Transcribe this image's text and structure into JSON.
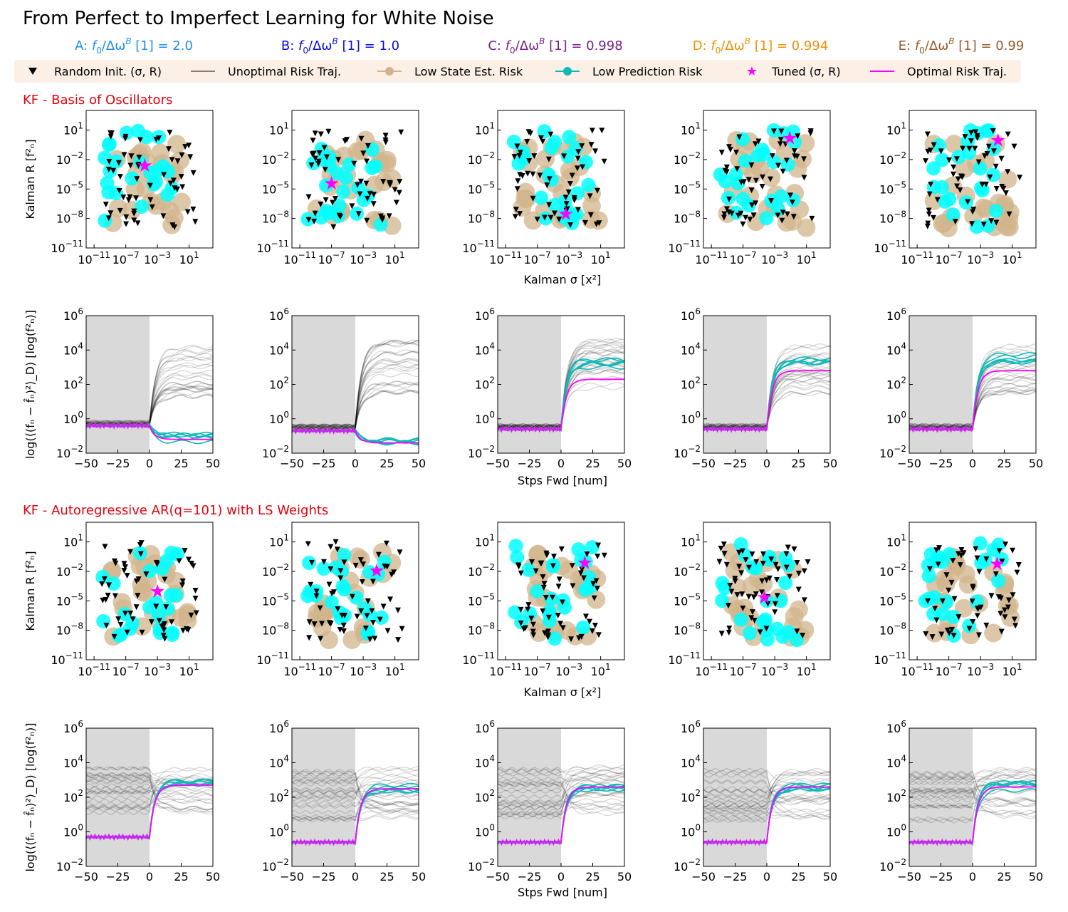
{
  "title": "From Perfect to Imperfect Learning for White Noise",
  "columns": [
    {
      "letter": "A",
      "value": "2.0",
      "color": "#1f8ff0"
    },
    {
      "letter": "B",
      "value": "1.0",
      "color": "#0a10e0"
    },
    {
      "letter": "C",
      "value": "0.998",
      "color": "#7a1e8a"
    },
    {
      "letter": "D",
      "value": "0.994",
      "color": "#f0900a"
    },
    {
      "letter": "E",
      "value": "0.99",
      "color": "#9a5a2a"
    }
  ],
  "column_label_mid": "/Δω",
  "column_label_tail": " [1] = ",
  "legend": {
    "items": [
      {
        "label": "Random Init. (σ, R)",
        "kind": "triangle",
        "color": "#000000"
      },
      {
        "label": "Unoptimal Risk Traj.",
        "kind": "line",
        "color": "#808080"
      },
      {
        "label": "Low State Est. Risk",
        "kind": "line-dot",
        "color": "#d2b48c"
      },
      {
        "label": "Low Prediction Risk",
        "kind": "line-dot",
        "color": "#10b8b8"
      },
      {
        "label": "Tuned (σ, R)",
        "kind": "star",
        "color": "#ff00ff"
      },
      {
        "label": "Optimal Risk Traj.",
        "kind": "line",
        "color": "#ff00ff"
      }
    ]
  },
  "sections": [
    {
      "title": "KF - Basis of Oscillators"
    },
    {
      "title": "KF - Autoregressive AR(q=101) with LS Weights"
    }
  ],
  "scatter_axes": {
    "xlabel": "Kalman σ [x²]",
    "ylabel": "Kalman R [f²ₙ]",
    "x_ticks": [
      -11,
      -7,
      -3,
      1
    ],
    "y_ticks": [
      -11,
      -8,
      -5,
      -2,
      1
    ],
    "xlim": [
      -12,
      4
    ],
    "ylim": [
      -11,
      3
    ]
  },
  "traj_axes": {
    "xlabel": "Stps Fwd [num]",
    "ylabel": "log(⟨(fₙ − f̂ₙ)²⟩_D) [log(f²ₙ)]",
    "x_ticks": [
      -50,
      -25,
      0,
      25,
      50
    ],
    "y_ticks": [
      -2,
      0,
      2,
      4,
      6
    ],
    "xlim": [
      -50,
      50
    ],
    "ylim": [
      -2,
      6
    ]
  },
  "chart_data": [
    {
      "type": "scatter",
      "panel": "oscillators-A",
      "tuned": [
        -4.6,
        -2.6
      ],
      "seed": 11
    },
    {
      "type": "scatter",
      "panel": "oscillators-B",
      "tuned": [
        -7.0,
        -4.4
      ],
      "seed": 12
    },
    {
      "type": "scatter",
      "panel": "oscillators-C",
      "tuned": [
        -3.4,
        -7.5
      ],
      "seed": 13
    },
    {
      "type": "scatter",
      "panel": "oscillators-D",
      "tuned": [
        -1.1,
        0.2
      ],
      "seed": 14
    },
    {
      "type": "scatter",
      "panel": "oscillators-E",
      "tuned": [
        -0.8,
        0.0
      ],
      "seed": 15
    },
    {
      "type": "line",
      "panel": "oscillators-A-traj",
      "pre_level": -0.3,
      "post_mag": 3.0,
      "opt_pre": -0.4,
      "opt_post": -1.2,
      "cyan_post": -1.1,
      "seed": 21
    },
    {
      "type": "line",
      "panel": "oscillators-B-traj",
      "pre_level": -0.5,
      "post_mag": 3.3,
      "opt_pre": -0.7,
      "opt_post": -1.4,
      "cyan_post": -1.3,
      "seed": 22
    },
    {
      "type": "line",
      "panel": "oscillators-C-traj",
      "pre_level": -0.5,
      "post_mag": 3.5,
      "opt_pre": -0.6,
      "opt_post": 2.3,
      "cyan_post": 3.2,
      "seed": 23
    },
    {
      "type": "line",
      "panel": "oscillators-D-traj",
      "pre_level": -0.5,
      "post_mag": 3.2,
      "opt_pre": -0.6,
      "opt_post": 2.8,
      "cyan_post": 3.3,
      "seed": 24
    },
    {
      "type": "line",
      "panel": "oscillators-E-traj",
      "pre_level": -0.5,
      "post_mag": 3.2,
      "opt_pre": -0.6,
      "opt_post": 2.8,
      "cyan_post": 3.5,
      "seed": 25
    },
    {
      "type": "scatter",
      "panel": "ar-A",
      "tuned": [
        -3.0,
        -4.0
      ],
      "seed": 31
    },
    {
      "type": "scatter",
      "panel": "ar-B",
      "tuned": [
        -1.3,
        -1.9
      ],
      "seed": 32
    },
    {
      "type": "scatter",
      "panel": "ar-C",
      "tuned": [
        -1.0,
        -1.1
      ],
      "seed": 33
    },
    {
      "type": "scatter",
      "panel": "ar-D",
      "tuned": [
        -4.3,
        -4.6
      ],
      "seed": 34
    },
    {
      "type": "scatter",
      "panel": "ar-E",
      "tuned": [
        -0.9,
        -1.2
      ],
      "seed": 35
    },
    {
      "type": "line",
      "panel": "ar-A-traj",
      "pre_level": 2.5,
      "post_mag": 2.7,
      "opt_pre": -0.3,
      "opt_post": 2.7,
      "cyan_post": 2.75,
      "seed": 41
    },
    {
      "type": "line",
      "panel": "ar-B-traj",
      "pre_level": 2.4,
      "post_mag": 2.5,
      "opt_pre": -0.6,
      "opt_post": 2.5,
      "cyan_post": 2.55,
      "seed": 42
    },
    {
      "type": "line",
      "panel": "ar-C-traj",
      "pre_level": 2.6,
      "post_mag": 2.6,
      "opt_pre": -0.6,
      "opt_post": 2.6,
      "cyan_post": 2.55,
      "seed": 43
    },
    {
      "type": "line",
      "panel": "ar-D-traj",
      "pre_level": 2.4,
      "post_mag": 2.6,
      "opt_pre": -0.6,
      "opt_post": 2.6,
      "cyan_post": 2.65,
      "seed": 44
    },
    {
      "type": "line",
      "panel": "ar-E-traj",
      "pre_level": 2.4,
      "post_mag": 2.6,
      "opt_pre": -0.6,
      "opt_post": 2.6,
      "cyan_post": 2.65,
      "seed": 45
    }
  ]
}
